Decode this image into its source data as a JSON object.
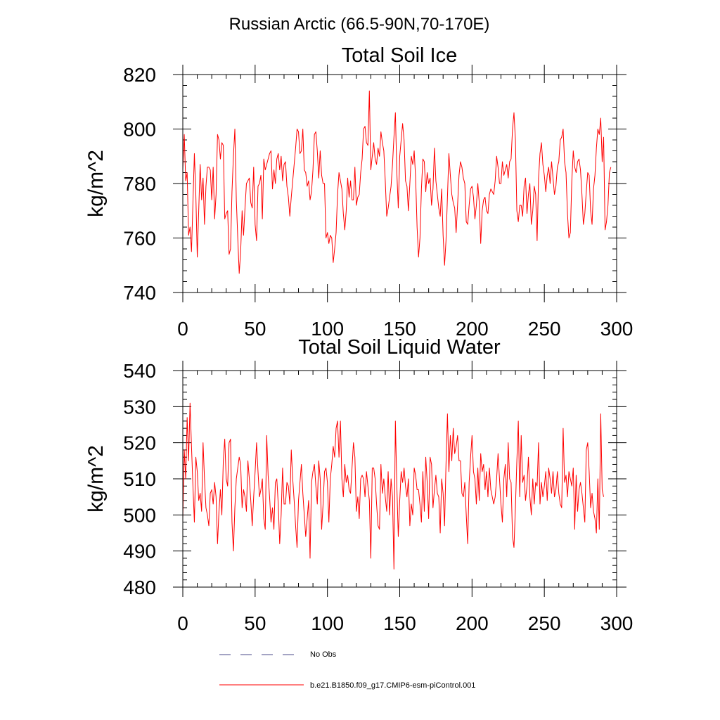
{
  "figure_title": "Russian Arctic (66.5-90N,70-170E)",
  "colors": {
    "model": "#ff0000",
    "obs": "#4a4a8a",
    "axes": "#000000"
  },
  "legend": {
    "obs_label": "No Obs",
    "model_label": "b.e21.B1850.f09_g17.CMIP6-esm-piControl.001"
  },
  "chart_data": [
    {
      "type": "line",
      "title": "Total Soil Ice",
      "xlabel": "",
      "ylabel": "kg/m^2",
      "xlim": [
        0,
        300
      ],
      "ylim": [
        740,
        820
      ],
      "xticks": [
        0,
        50,
        100,
        150,
        200,
        250,
        300
      ],
      "yticks": [
        740,
        760,
        780,
        800,
        820
      ],
      "xtick_labels": [
        "0",
        "50",
        "100",
        "150",
        "200",
        "250",
        "300"
      ],
      "ytick_labels": [
        "740",
        "760",
        "780",
        "800",
        "820"
      ],
      "series": [
        {
          "name": "b.e21.B1850.f09_g17.CMIP6-esm-piControl.001",
          "x_start": 0,
          "x_step": 1,
          "values": [
            785,
            798,
            781,
            784,
            761,
            764,
            755,
            773,
            791,
            776,
            753,
            770,
            787,
            774,
            782,
            765,
            779,
            786,
            786,
            785,
            774,
            786,
            767,
            776,
            798,
            796,
            789,
            795,
            794,
            767,
            769,
            770,
            754,
            756,
            777,
            790,
            800,
            774,
            760,
            747,
            755,
            770,
            761,
            771,
            780,
            781,
            782,
            773,
            771,
            786,
            765,
            759,
            779,
            780,
            783,
            767,
            789,
            785,
            787,
            789,
            791,
            792,
            778,
            785,
            780,
            789,
            791,
            785,
            790,
            781,
            787,
            788,
            779,
            775,
            768,
            775,
            781,
            787,
            793,
            800,
            799,
            791,
            792,
            800,
            785,
            784,
            779,
            781,
            774,
            777,
            785,
            798,
            799,
            792,
            782,
            792,
            783,
            780,
            780,
            760,
            762,
            758,
            761,
            760,
            751,
            756,
            762,
            776,
            784,
            781,
            778,
            769,
            763,
            770,
            782,
            775,
            781,
            774,
            774,
            786,
            772,
            775,
            776,
            784,
            789,
            800,
            801,
            795,
            794,
            814,
            785,
            790,
            795,
            789,
            787,
            793,
            790,
            799,
            795,
            792,
            781,
            768,
            771,
            775,
            779,
            787,
            797,
            806,
            784,
            771,
            790,
            796,
            802,
            796,
            781,
            779,
            770,
            780,
            790,
            787,
            792,
            782,
            764,
            753,
            760,
            778,
            789,
            788,
            777,
            784,
            780,
            782,
            772,
            778,
            793,
            781,
            776,
            771,
            768,
            778,
            761,
            750,
            759,
            775,
            791,
            783,
            776,
            773,
            771,
            762,
            772,
            783,
            788,
            786,
            782,
            780,
            766,
            765,
            772,
            778,
            779,
            775,
            767,
            772,
            780,
            773,
            758,
            770,
            774,
            775,
            770,
            769,
            776,
            778,
            777,
            776,
            781,
            790,
            786,
            780,
            780,
            788,
            783,
            785,
            787,
            782,
            788,
            789,
            800,
            806,
            796,
            770,
            766,
            772,
            772,
            768,
            779,
            782,
            769,
            776,
            780,
            765,
            770,
            779,
            776,
            759,
            782,
            791,
            795,
            787,
            783,
            777,
            783,
            786,
            780,
            788,
            782,
            776,
            779,
            786,
            788,
            796,
            797,
            800,
            788,
            784,
            769,
            760,
            762,
            781,
            792,
            786,
            784,
            788,
            789,
            785,
            776,
            765,
            769,
            777,
            784,
            783,
            770,
            765,
            778,
            783,
            793,
            800,
            798,
            804,
            788,
            797,
            763,
            766,
            772,
            784,
            786
          ]
        }
      ]
    },
    {
      "type": "line",
      "title": "Total Soil Liquid Water",
      "xlabel": "",
      "ylabel": "kg/m^2",
      "xlim": [
        0,
        300
      ],
      "ylim": [
        480,
        540
      ],
      "xticks": [
        0,
        50,
        100,
        150,
        200,
        250,
        300
      ],
      "yticks": [
        480,
        490,
        500,
        510,
        520,
        530,
        540
      ],
      "xtick_labels": [
        "0",
        "50",
        "100",
        "150",
        "200",
        "250",
        "300"
      ],
      "ytick_labels": [
        "480",
        "490",
        "500",
        "510",
        "520",
        "530",
        "540"
      ],
      "series": [
        {
          "name": "b.e21.B1850.f09_g17.CMIP6-esm-piControl.001",
          "x_start": 0,
          "x_step": 1,
          "values": [
            499,
            518,
            510,
            527,
            515,
            531,
            519,
            508,
            498,
            516,
            512,
            504,
            506,
            501,
            520,
            510,
            502,
            500,
            497,
            506,
            507,
            503,
            509,
            505,
            492,
            501,
            507,
            500,
            515,
            521,
            510,
            508,
            520,
            521,
            498,
            490,
            502,
            510,
            513,
            516,
            514,
            502,
            507,
            505,
            501,
            515,
            510,
            504,
            497,
            505,
            512,
            520,
            512,
            505,
            507,
            510,
            499,
            496,
            522,
            511,
            505,
            498,
            502,
            496,
            509,
            510,
            503,
            492,
            500,
            513,
            503,
            503,
            509,
            508,
            503,
            518,
            510,
            504,
            497,
            491,
            504,
            509,
            514,
            506,
            500,
            494,
            499,
            504,
            488,
            509,
            512,
            514,
            508,
            503,
            515,
            510,
            496,
            503,
            512,
            513,
            509,
            498,
            510,
            514,
            519,
            516,
            524,
            526,
            516,
            526,
            510,
            505,
            514,
            509,
            511,
            507,
            506,
            513,
            520,
            516,
            501,
            505,
            499,
            510,
            511,
            510,
            505,
            512,
            508,
            504,
            488,
            513,
            513,
            510,
            503,
            497,
            496,
            514,
            506,
            510,
            505,
            501,
            512,
            500,
            510,
            505,
            485,
            526,
            508,
            494,
            504,
            512,
            509,
            513,
            508,
            505,
            510,
            497,
            503,
            500,
            513,
            511,
            507,
            507,
            503,
            498,
            512,
            501,
            516,
            509,
            499,
            516,
            514,
            502,
            507,
            511,
            506,
            505,
            495,
            510,
            506,
            497,
            514,
            528,
            512,
            522,
            515,
            524,
            517,
            519,
            522,
            515,
            515,
            506,
            505,
            509,
            500,
            492,
            509,
            516,
            522,
            512,
            510,
            503,
            513,
            504,
            517,
            512,
            514,
            507,
            512,
            505,
            513,
            507,
            505,
            503,
            505,
            510,
            517,
            510,
            503,
            498,
            510,
            514,
            505,
            520,
            510,
            509,
            494,
            491,
            502,
            515,
            526,
            505,
            522,
            509,
            511,
            504,
            508,
            516,
            505,
            500,
            510,
            503,
            509,
            508,
            520,
            503,
            509,
            505,
            508,
            512,
            504,
            513,
            510,
            506,
            512,
            505,
            507,
            512,
            506,
            503,
            502,
            524,
            509,
            511,
            505,
            512,
            510,
            508,
            513,
            496,
            511,
            501,
            507,
            509,
            506,
            502,
            498,
            518,
            520,
            512,
            502,
            506,
            501,
            499,
            495,
            510,
            496,
            528,
            507,
            505
          ]
        }
      ]
    }
  ]
}
